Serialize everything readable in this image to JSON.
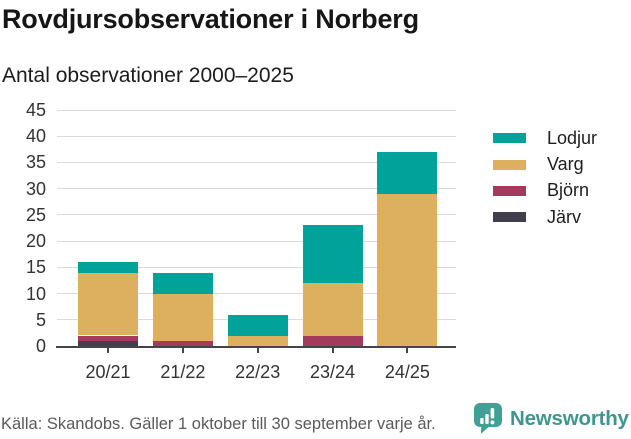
{
  "chart_data": {
    "type": "bar",
    "stacked": true,
    "title": "Rovdjursobservationer i Norberg",
    "subtitle": "Antal observationer 2000–2025",
    "categories": [
      "20/21",
      "21/22",
      "22/23",
      "23/24",
      "24/25"
    ],
    "series": [
      {
        "name": "Järv",
        "key": "jarv",
        "color": "#413f4c",
        "values": [
          1,
          0,
          0,
          0,
          0
        ]
      },
      {
        "name": "Björn",
        "key": "bjorn",
        "color": "#a23b5c",
        "values": [
          1,
          1,
          0,
          2,
          0
        ]
      },
      {
        "name": "Varg",
        "key": "varg",
        "color": "#dcb05f",
        "values": [
          12,
          9,
          2,
          10,
          29
        ]
      },
      {
        "name": "Lodjur",
        "key": "lodjur",
        "color": "#00a29a",
        "values": [
          2,
          4,
          4,
          11,
          8
        ]
      }
    ],
    "stack_order": "bottom-to-top",
    "totals": [
      16,
      14,
      6,
      23,
      37
    ],
    "legend_order": [
      "Lodjur",
      "Varg",
      "Björn",
      "Järv"
    ],
    "legend_position": "right",
    "ylim": [
      0,
      45
    ],
    "ytick_step": 5,
    "yticks": [
      0,
      5,
      10,
      15,
      20,
      25,
      30,
      35,
      40,
      45
    ],
    "grid": true,
    "xlabel": "",
    "ylabel": ""
  },
  "footer": {
    "source": "Källa: Skandobs. Gäller 1 oktober till 30 september varje år.",
    "brand": "Newsworthy",
    "logo_icon": "newsworthy-speech-bubble-bar-chart-icon"
  },
  "colors": {
    "background": "#ffffff",
    "gridline": "#dadada",
    "axis": "#454545",
    "axis_label": "#333333",
    "title_text": "#161616",
    "source_text": "#5a5a5a",
    "brand_teal": "#3f968e"
  }
}
